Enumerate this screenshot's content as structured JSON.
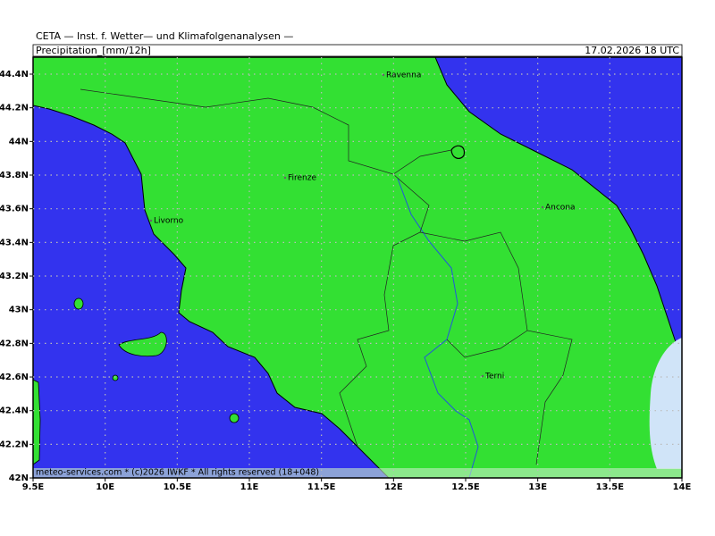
{
  "header": {
    "institute": "CETA — Inst. f. Wetter— und Klimafolgenanalysen —",
    "title": "Precipitation_[mm/12h]",
    "date": "17.02.2026 18 UTC"
  },
  "map": {
    "lat_labels": [
      "44.4N",
      "44.2N",
      "44N",
      "43.8N",
      "43.6N",
      "43.4N",
      "43.2N",
      "43N",
      "42.8N",
      "42.6N",
      "42.4N",
      "42.2N",
      "42N"
    ],
    "lon_labels": [
      "9.5E",
      "10E",
      "10.5E",
      "11E",
      "11.5E",
      "12E",
      "12.5E",
      "13E",
      "13.5E",
      "14E"
    ],
    "cities": [
      "Ravenna",
      "Firenze",
      "Livorno",
      "Ancona",
      "Terni"
    ],
    "footer": "meteo-services.com * (c)2026 IWKF * All rights reserved (18+048)"
  }
}
